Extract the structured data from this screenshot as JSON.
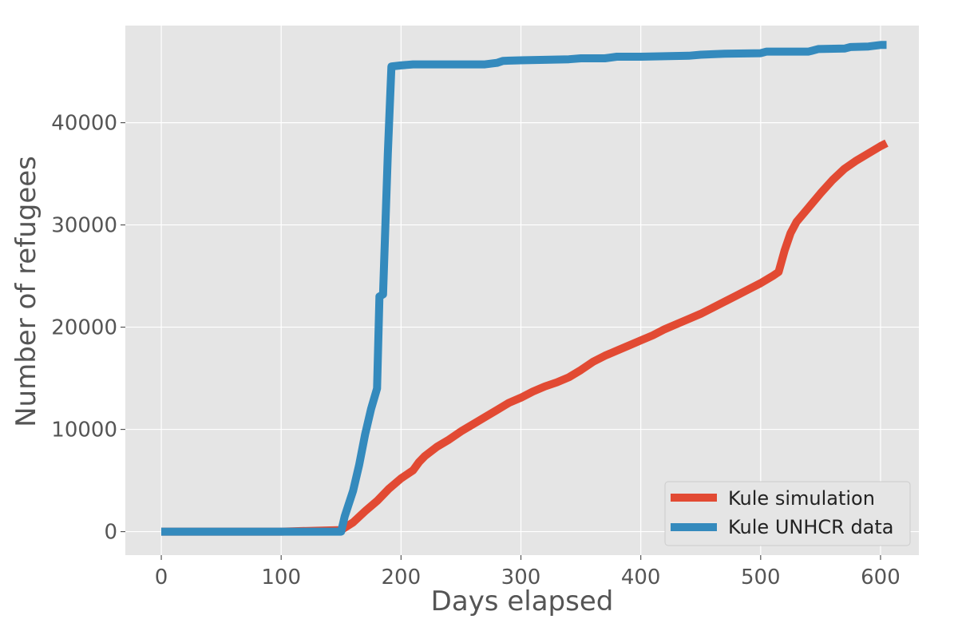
{
  "chart_data": {
    "type": "line",
    "title": "",
    "xlabel": "Days elapsed",
    "ylabel": "Number of refugees",
    "xlim": [
      -30,
      632
    ],
    "ylim": [
      -2300,
      49500
    ],
    "x_ticks": [
      0,
      100,
      200,
      300,
      400,
      500,
      600
    ],
    "y_ticks": [
      0,
      10000,
      20000,
      30000,
      40000
    ],
    "x_tick_labels": [
      "0",
      "100",
      "200",
      "300",
      "400",
      "500",
      "600"
    ],
    "y_tick_labels": [
      "0",
      "10000",
      "20000",
      "30000",
      "40000"
    ],
    "grid": true,
    "legend_position": "lower-right",
    "colors": {
      "background": "#e5e5e5",
      "grid": "#ffffff",
      "simulation": "#e24a33",
      "unhcr": "#348abd"
    },
    "series": [
      {
        "name": "Kule simulation",
        "color": "#e24a33",
        "points": [
          [
            0,
            0
          ],
          [
            100,
            0
          ],
          [
            150,
            150
          ],
          [
            160,
            900
          ],
          [
            170,
            2000
          ],
          [
            180,
            3000
          ],
          [
            190,
            4200
          ],
          [
            200,
            5200
          ],
          [
            210,
            6000
          ],
          [
            215,
            6800
          ],
          [
            220,
            7400
          ],
          [
            230,
            8300
          ],
          [
            240,
            9000
          ],
          [
            250,
            9800
          ],
          [
            260,
            10500
          ],
          [
            270,
            11200
          ],
          [
            280,
            11900
          ],
          [
            290,
            12600
          ],
          [
            300,
            13100
          ],
          [
            310,
            13700
          ],
          [
            320,
            14200
          ],
          [
            330,
            14600
          ],
          [
            340,
            15100
          ],
          [
            350,
            15800
          ],
          [
            360,
            16600
          ],
          [
            370,
            17200
          ],
          [
            380,
            17700
          ],
          [
            390,
            18200
          ],
          [
            400,
            18700
          ],
          [
            410,
            19200
          ],
          [
            420,
            19800
          ],
          [
            430,
            20300
          ],
          [
            440,
            20800
          ],
          [
            450,
            21300
          ],
          [
            460,
            21900
          ],
          [
            470,
            22500
          ],
          [
            480,
            23100
          ],
          [
            490,
            23700
          ],
          [
            500,
            24300
          ],
          [
            510,
            25000
          ],
          [
            515,
            25400
          ],
          [
            520,
            27500
          ],
          [
            525,
            29200
          ],
          [
            530,
            30300
          ],
          [
            540,
            31700
          ],
          [
            550,
            33100
          ],
          [
            560,
            34400
          ],
          [
            570,
            35500
          ],
          [
            580,
            36300
          ],
          [
            590,
            37000
          ],
          [
            600,
            37700
          ],
          [
            605,
            38000
          ]
        ]
      },
      {
        "name": "Kule UNHCR data",
        "color": "#348abd",
        "points": [
          [
            0,
            0
          ],
          [
            150,
            0
          ],
          [
            153,
            1500
          ],
          [
            160,
            4000
          ],
          [
            165,
            6500
          ],
          [
            170,
            9500
          ],
          [
            175,
            12000
          ],
          [
            180,
            14000
          ],
          [
            182,
            23000
          ],
          [
            185,
            23200
          ],
          [
            189,
            37000
          ],
          [
            192,
            45500
          ],
          [
            200,
            45600
          ],
          [
            210,
            45700
          ],
          [
            270,
            45700
          ],
          [
            280,
            45850
          ],
          [
            285,
            46050
          ],
          [
            300,
            46100
          ],
          [
            340,
            46200
          ],
          [
            350,
            46300
          ],
          [
            370,
            46300
          ],
          [
            380,
            46450
          ],
          [
            400,
            46450
          ],
          [
            420,
            46500
          ],
          [
            440,
            46550
          ],
          [
            450,
            46650
          ],
          [
            470,
            46750
          ],
          [
            500,
            46800
          ],
          [
            505,
            46950
          ],
          [
            540,
            46950
          ],
          [
            548,
            47200
          ],
          [
            570,
            47250
          ],
          [
            575,
            47400
          ],
          [
            590,
            47450
          ],
          [
            600,
            47600
          ],
          [
            605,
            47600
          ]
        ]
      }
    ]
  }
}
